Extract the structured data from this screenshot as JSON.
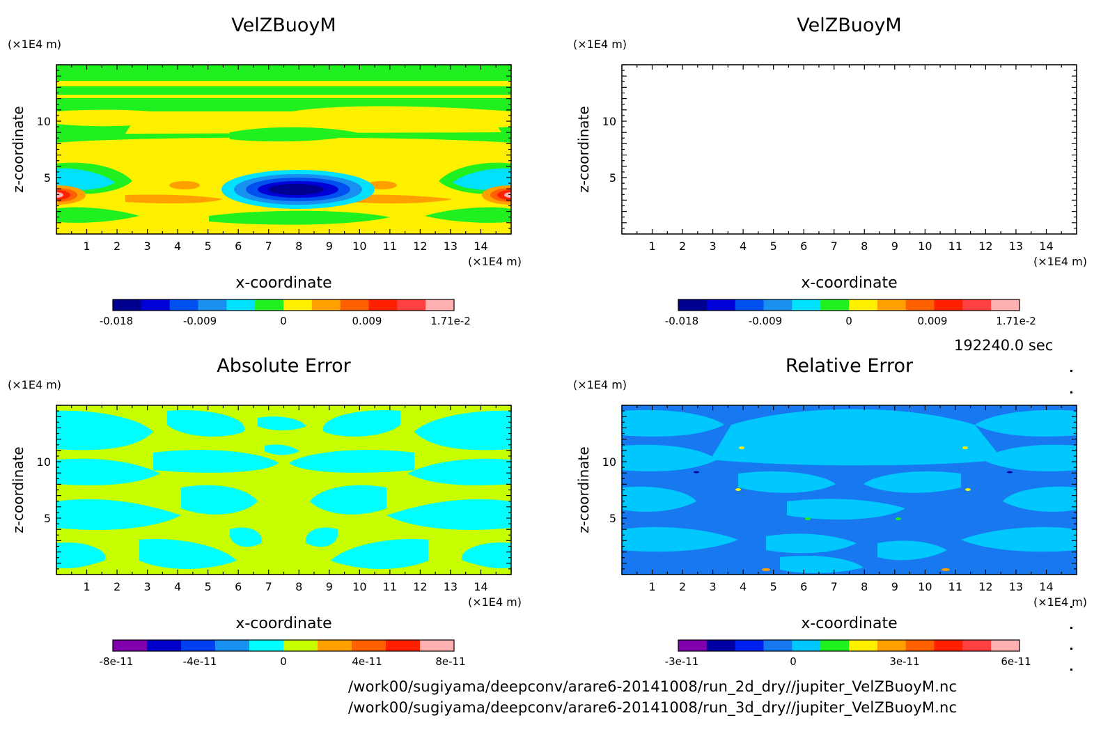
{
  "time_label": "192240.0 sec",
  "file_paths": [
    "/work00/sugiyama/deepconv/arare6-20141008/run_2d_dry//jupiter_VelZBuoyM.nc",
    "/work00/sugiyama/deepconv/arare6-20141008/run_3d_dry//jupiter_VelZBuoyM.nc"
  ],
  "chart_data": [
    {
      "type": "heatmap",
      "title": "VelZBuoyM",
      "xlabel": "x-coordinate",
      "ylabel": "z-coordinate",
      "x_unit": "(×1E4 m)",
      "y_unit": "(×1E4 m)",
      "xlim": [
        0,
        15
      ],
      "ylim": [
        0,
        15
      ],
      "x_ticks": [
        "1",
        "2",
        "3",
        "4",
        "5",
        "6",
        "7",
        "8",
        "9",
        "10",
        "11",
        "12",
        "13",
        "14"
      ],
      "y_ticks": [
        "5",
        "10"
      ],
      "colorbar": {
        "colors": [
          "#000090",
          "#0000d8",
          "#0050f0",
          "#1890f0",
          "#00e0ff",
          "#20f020",
          "#fff000",
          "#ffa000",
          "#ff6000",
          "#ff2000",
          "#ff4040",
          "#ffb0b0"
        ],
        "tick_labels": [
          "-0.018",
          "-0.009",
          "0",
          "0.009",
          "1.71e-2"
        ]
      }
    },
    {
      "type": "heatmap",
      "title": "VelZBuoyM",
      "xlabel": "x-coordinate",
      "ylabel": "z-coordinate",
      "x_unit": "(×1E4 m)",
      "y_unit": "(×1E4 m)",
      "xlim": [
        0,
        15
      ],
      "ylim": [
        0,
        15
      ],
      "x_ticks": [
        "1",
        "2",
        "3",
        "4",
        "5",
        "6",
        "7",
        "8",
        "9",
        "10",
        "11",
        "12",
        "13",
        "14"
      ],
      "y_ticks": [
        "5",
        "10"
      ],
      "colorbar": {
        "colors": [
          "#000090",
          "#0000d8",
          "#0050f0",
          "#1890f0",
          "#00e0ff",
          "#20f020",
          "#fff000",
          "#ffa000",
          "#ff6000",
          "#ff2000",
          "#ff4040",
          "#ffb0b0"
        ],
        "tick_labels": [
          "-0.018",
          "-0.009",
          "0",
          "0.009",
          "1.71e-2"
        ]
      }
    },
    {
      "type": "heatmap",
      "title": "Absolute Error",
      "xlabel": "x-coordinate",
      "ylabel": "z-coordinate",
      "x_unit": "(×1E4 m)",
      "y_unit": "(×1E4 m)",
      "xlim": [
        0,
        15
      ],
      "ylim": [
        0,
        15
      ],
      "x_ticks": [
        "1",
        "2",
        "3",
        "4",
        "5",
        "6",
        "7",
        "8",
        "9",
        "10",
        "11",
        "12",
        "13",
        "14"
      ],
      "y_ticks": [
        "5",
        "10"
      ],
      "colorbar": {
        "colors": [
          "#8000b0",
          "#0000c8",
          "#0040f0",
          "#1890f0",
          "#00ffff",
          "#c8ff00",
          "#ffa000",
          "#ff6000",
          "#ff2000",
          "#ffb0b0"
        ],
        "tick_labels": [
          "-8e-11",
          "-4e-11",
          "0",
          "4e-11",
          "8e-11"
        ]
      }
    },
    {
      "type": "heatmap",
      "title": "Relative Error",
      "xlabel": "x-coordinate",
      "ylabel": "z-coordinate",
      "x_unit": "(×1E4 m)",
      "y_unit": "(×1E4 m)",
      "xlim": [
        0,
        15
      ],
      "ylim": [
        0,
        15
      ],
      "x_ticks": [
        "1",
        "2",
        "3",
        "4",
        "5",
        "6",
        "7",
        "8",
        "9",
        "10",
        "11",
        "12",
        "13",
        "14"
      ],
      "y_ticks": [
        "5",
        "10"
      ],
      "colorbar": {
        "colors": [
          "#8000b0",
          "#0000a0",
          "#0020f0",
          "#1878f0",
          "#00c8ff",
          "#20f020",
          "#fff000",
          "#ffa000",
          "#ff6000",
          "#ff2000",
          "#ff4040",
          "#ffb0b0"
        ],
        "tick_labels": [
          "-3e-11",
          "0",
          "3e-11",
          "6e-11"
        ]
      }
    }
  ]
}
